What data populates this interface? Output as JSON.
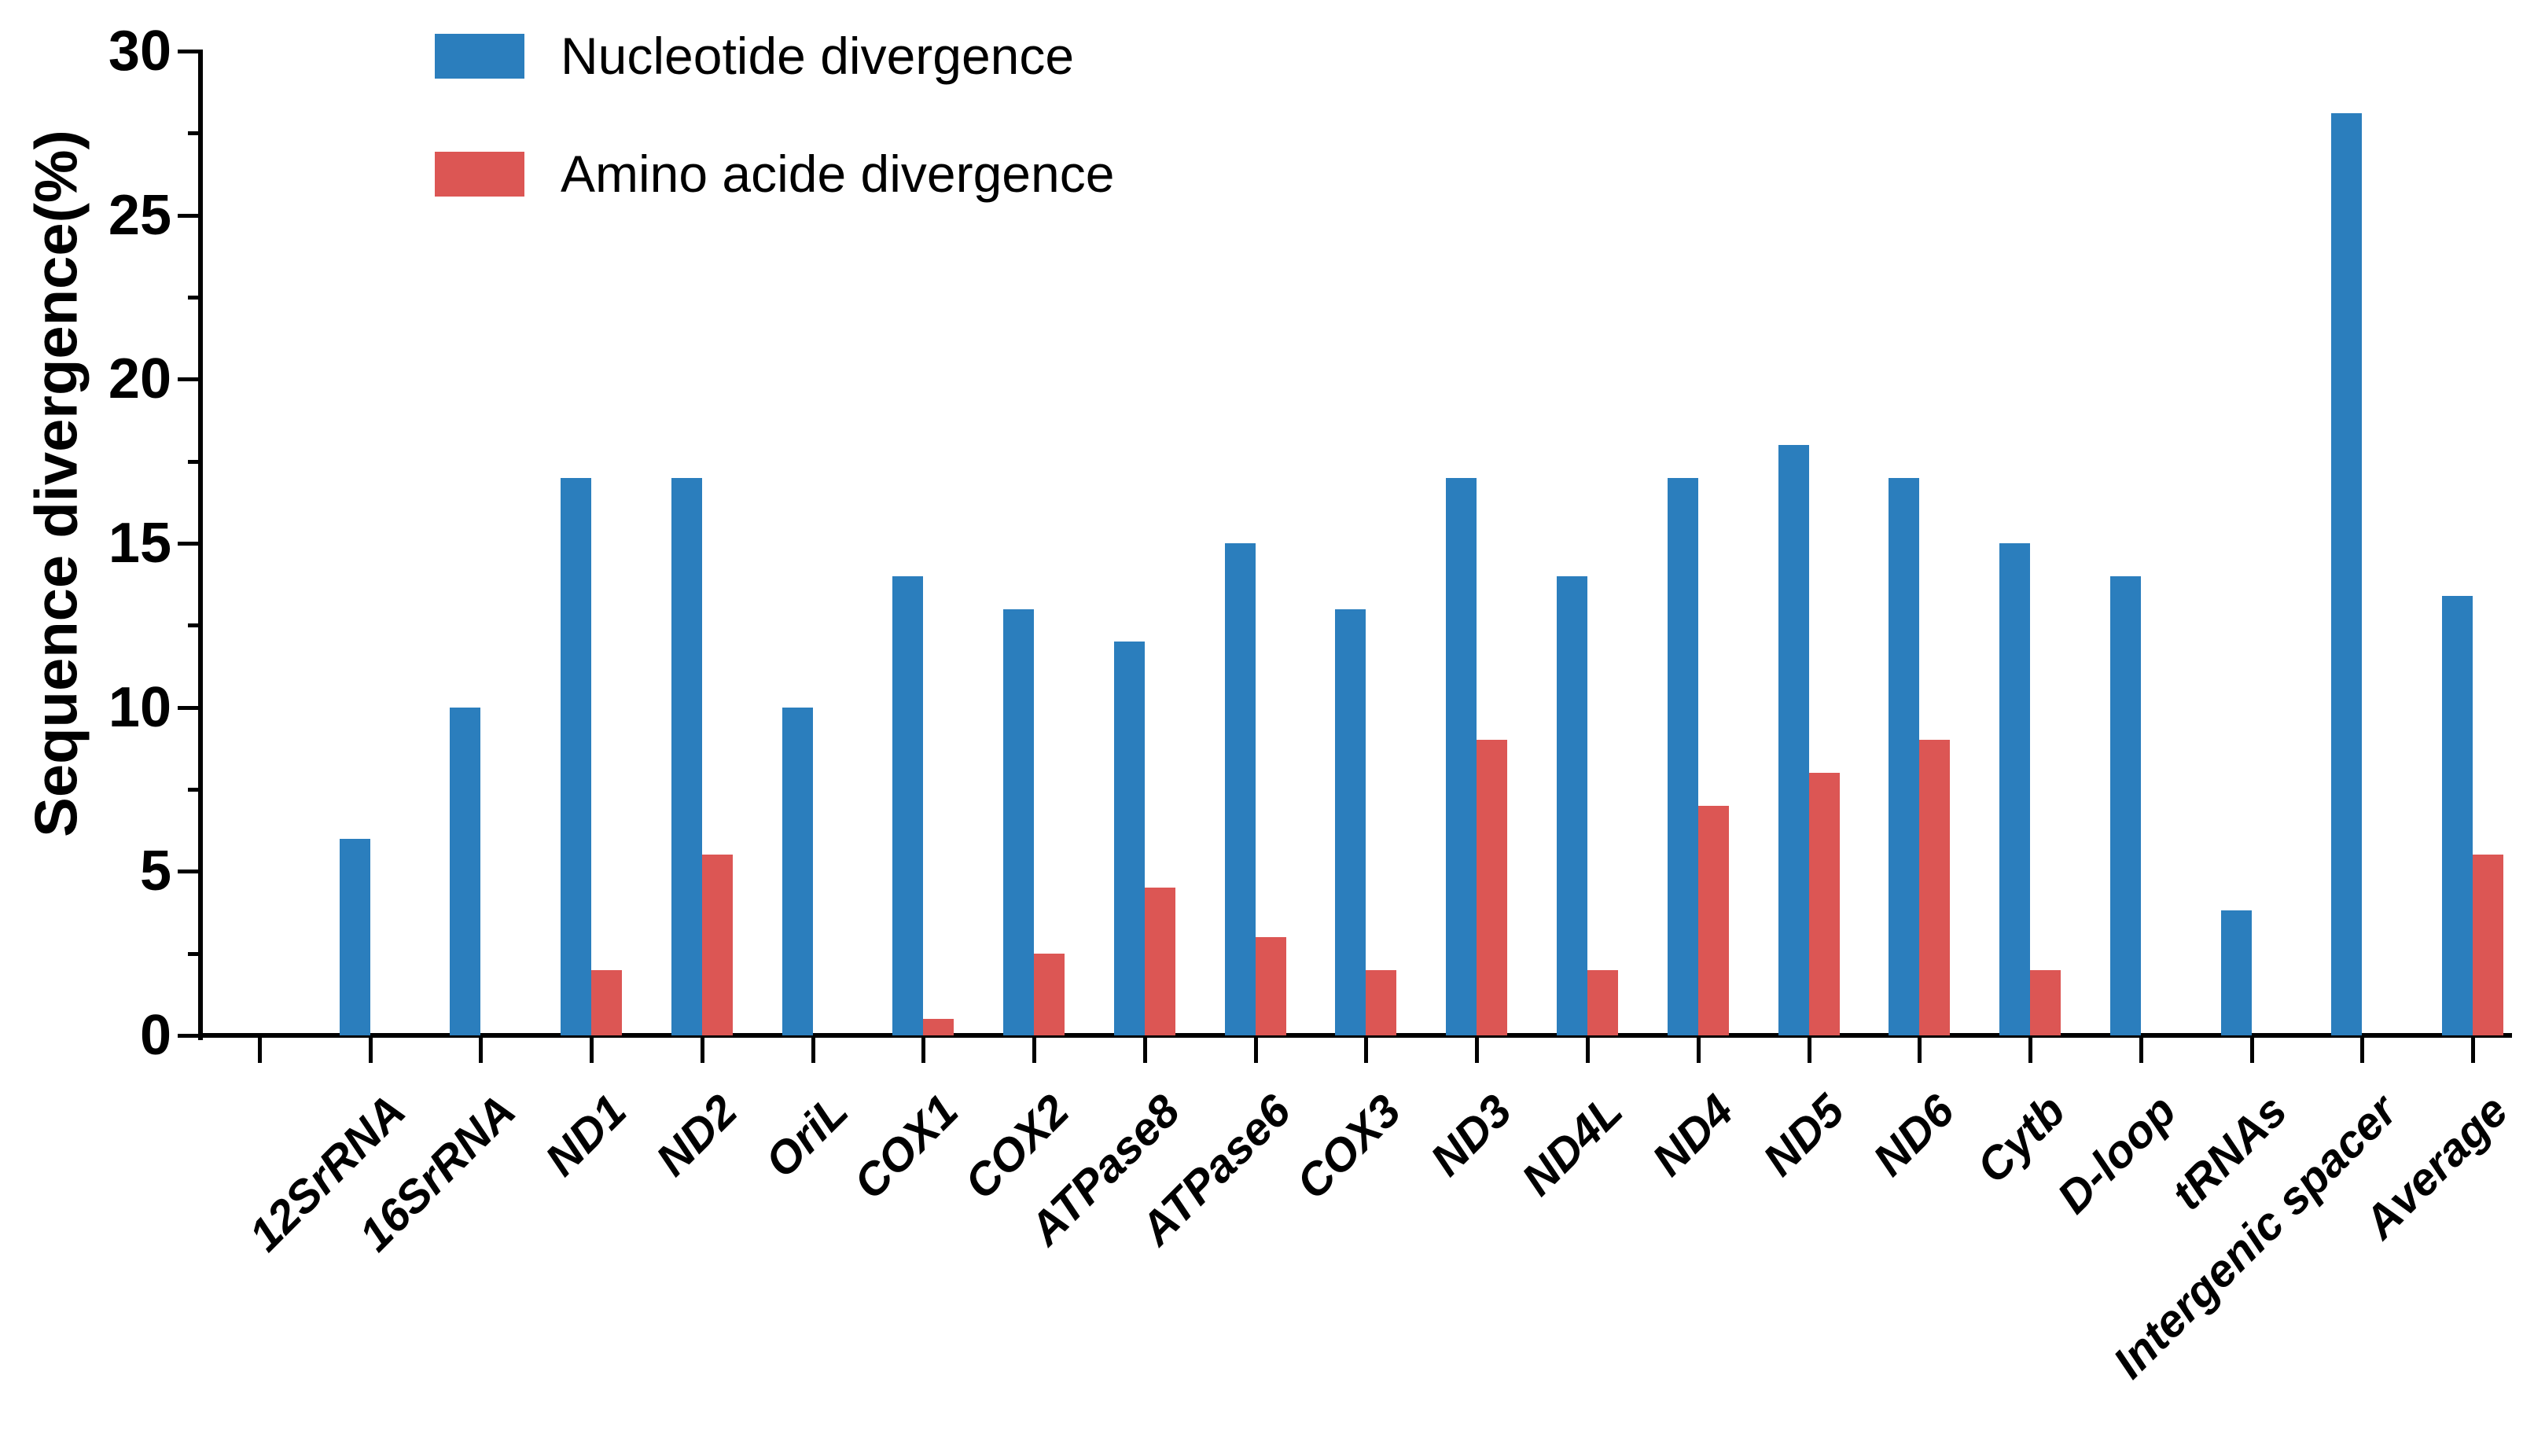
{
  "figure": {
    "background": "#ffffff",
    "axis_color": "#000000"
  },
  "legend": {
    "items": [
      {
        "label": "Nucleotide divergence",
        "color": "#2b7ebd"
      },
      {
        "label": "Amino acide divergence",
        "color": "#dc5654"
      }
    ]
  },
  "chart_data": {
    "type": "bar",
    "title": "",
    "xlabel": "",
    "ylabel": "Sequence divergence(%)",
    "ylim": [
      0,
      30
    ],
    "yticks": [
      0,
      5,
      10,
      15,
      20,
      25,
      30
    ],
    "minor_tick_interval": 2.5,
    "grid": false,
    "legend_position": "top-left-inside",
    "categories": [
      "12SrRNA",
      "16SrRNA",
      "ND1",
      "ND2",
      "OriL",
      "COX1",
      "COX2",
      "ATPase8",
      "ATPase6",
      "COX3",
      "ND3",
      "ND4L",
      "ND4",
      "ND5",
      "ND6",
      "Cytb",
      "D-loop",
      "tRNAs",
      "Intergenic spacer",
      "Average"
    ],
    "series": [
      {
        "name": "Nucleotide divergence",
        "color": "#2b7ebd",
        "values": [
          6,
          10,
          17,
          17,
          10,
          14,
          13,
          12,
          15,
          13,
          17,
          14,
          17,
          18,
          17,
          15,
          14,
          3.8,
          28.1,
          13.4
        ]
      },
      {
        "name": "Amino acide divergence",
        "color": "#dc5654",
        "values": [
          0,
          0,
          2,
          5.5,
          0,
          0.5,
          2.5,
          4.5,
          3,
          2,
          9,
          2,
          7,
          8,
          9,
          2,
          0,
          0,
          0,
          5.5
        ]
      }
    ]
  }
}
